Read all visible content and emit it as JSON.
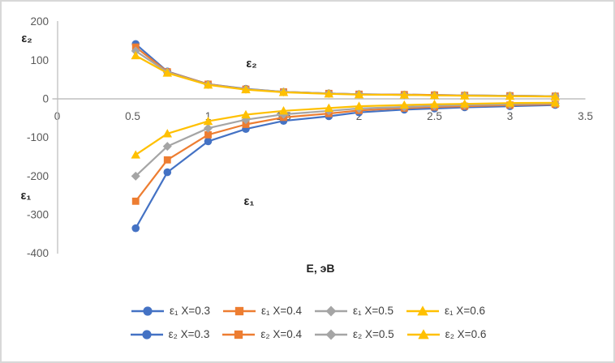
{
  "frame": {
    "background": "#FFFFFF",
    "border_color": "#D8D8D8"
  },
  "chart_data": {
    "type": "line",
    "x": [
      0.52,
      0.73,
      1.0,
      1.25,
      1.5,
      1.8,
      2.0,
      2.3,
      2.5,
      2.7,
      3.0,
      3.3
    ],
    "series": [
      {
        "name": "ε₁ X=0.3",
        "group": "eps1",
        "color": "#4472C4",
        "marker": "circle",
        "values": [
          -335,
          -190,
          -110,
          -78,
          -57,
          -45,
          -35,
          -28,
          -25,
          -22,
          -19,
          -16
        ]
      },
      {
        "name": "ε₁ X=0.4",
        "group": "eps1",
        "color": "#ED7D31",
        "marker": "square",
        "values": [
          -265,
          -158,
          -93,
          -66,
          -48,
          -38,
          -30,
          -24,
          -21,
          -19,
          -16,
          -14
        ]
      },
      {
        "name": "ε₁ X=0.5",
        "group": "eps1",
        "color": "#A5A5A5",
        "marker": "diamond",
        "values": [
          -200,
          -123,
          -76,
          -54,
          -40,
          -31,
          -25,
          -21,
          -18,
          -16,
          -14,
          -12
        ]
      },
      {
        "name": "ε₁ X=0.6",
        "group": "eps1",
        "color": "#FFC000",
        "marker": "triangle",
        "values": [
          -145,
          -90,
          -58,
          -41,
          -31,
          -24,
          -19,
          -16,
          -14,
          -13,
          -11,
          -10
        ]
      },
      {
        "name": "ε₂ X=0.3",
        "group": "eps2",
        "color": "#4472C4",
        "marker": "circle",
        "values": [
          142,
          71,
          38,
          26,
          18,
          14,
          12,
          11,
          10,
          9,
          8,
          7
        ]
      },
      {
        "name": "ε₂ X=0.4",
        "group": "eps2",
        "color": "#ED7D31",
        "marker": "square",
        "values": [
          134,
          70,
          38,
          25,
          18,
          14,
          12,
          11,
          10,
          9,
          8,
          7
        ]
      },
      {
        "name": "ε₂ X=0.5",
        "group": "eps2",
        "color": "#A5A5A5",
        "marker": "diamond",
        "values": [
          124,
          69,
          37,
          25,
          18,
          14,
          12,
          10,
          9,
          9,
          8,
          7
        ]
      },
      {
        "name": "ε₂ X=0.6",
        "group": "eps2",
        "color": "#FFC000",
        "marker": "triangle",
        "values": [
          112,
          67,
          36,
          24,
          17,
          13,
          11,
          10,
          9,
          8,
          7,
          6
        ]
      }
    ],
    "xlabel": "E, эВ",
    "xlim": [
      0,
      3.5
    ],
    "ylim": [
      -400,
      200
    ],
    "xticks": [
      0,
      0.5,
      1,
      1.5,
      2,
      2.5,
      3,
      3.5
    ],
    "yticks": [
      200,
      100,
      0,
      -100,
      -200,
      -300,
      -400
    ],
    "grid": false,
    "legend_position": "bottom",
    "axis_color": "#BFBFBF",
    "tick_color": "#595959",
    "annotations": [
      {
        "text": "ε₂",
        "x": 308,
        "y": 77
      },
      {
        "text": "ε₁",
        "x": 305,
        "y": 247
      },
      {
        "text": "ε₂",
        "x": 31,
        "y": 46
      },
      {
        "text": "ε₁",
        "x": 30,
        "y": 240
      }
    ]
  }
}
